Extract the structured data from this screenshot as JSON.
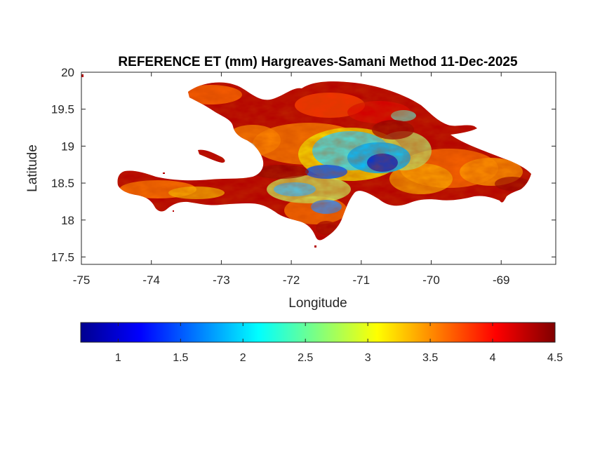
{
  "figure": {
    "title": "REFERENCE ET (mm) Hargreaves-Samani Method  11-Dec-2025",
    "xlabel": "Longitude",
    "ylabel": "Latitude"
  },
  "chart_data": {
    "type": "heatmap",
    "title": "REFERENCE ET (mm) Hargreaves-Samani Method  11-Dec-2025",
    "xlabel": "Longitude",
    "ylabel": "Latitude",
    "xlim": [
      -75,
      -68.22
    ],
    "ylim": [
      17.4,
      20
    ],
    "xticks": [
      "-75",
      "-74",
      "-73",
      "-72",
      "-71",
      "-70",
      "-69"
    ],
    "xtick_values": [
      -75,
      -74,
      -73,
      -72,
      -71,
      -70,
      -69
    ],
    "yticks": [
      "20",
      "19.5",
      "19",
      "18.5",
      "18",
      "17.5"
    ],
    "ytick_values": [
      20,
      19.5,
      19,
      18.5,
      18,
      17.5
    ],
    "grid": false,
    "colormap": "jet",
    "colorbar": {
      "orientation": "horizontal",
      "range": [
        0.7,
        4.5
      ],
      "ticks": [
        "1",
        "1.5",
        "2",
        "2.5",
        "3",
        "3.5",
        "4",
        "4.5"
      ],
      "tick_values": [
        1,
        1.5,
        2,
        2.5,
        3,
        3.5,
        4,
        4.5
      ]
    },
    "field_description_values": {
      "typical_range": [
        2.0,
        4.5
      ],
      "low_region_lon_lat": [
        -70.8,
        18.8
      ],
      "low_region_value": 1.2
    }
  }
}
